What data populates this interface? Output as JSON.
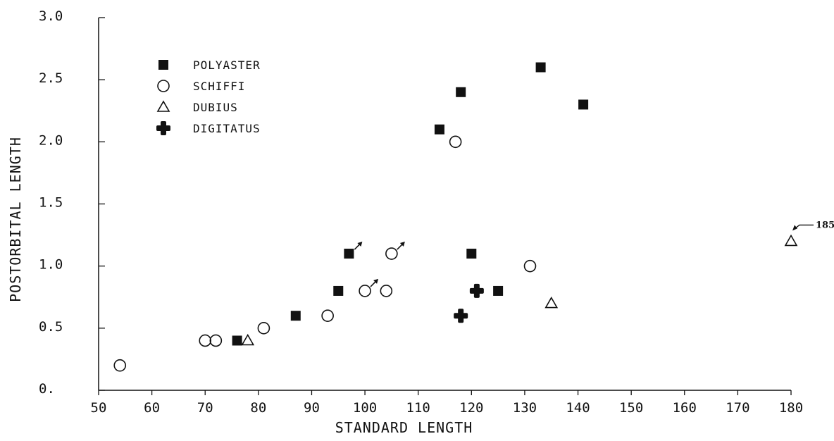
{
  "chart_data": {
    "type": "scatter",
    "title": "",
    "xlabel": "STANDARD LENGTH",
    "ylabel": "POSTORBITAL LENGTH",
    "xlim": [
      50,
      180
    ],
    "ylim": [
      0,
      3.0
    ],
    "xticks": [
      "50",
      "60",
      "70",
      "80",
      "90",
      "100",
      "110",
      "120",
      "130",
      "140",
      "150",
      "160",
      "170",
      "180"
    ],
    "xtick_values": [
      50,
      60,
      70,
      80,
      90,
      100,
      110,
      120,
      130,
      140,
      150,
      160,
      170,
      180
    ],
    "yticks": [
      "0.",
      "0.5",
      "1.0",
      "1.5",
      "2.0",
      "2.5",
      "3.0"
    ],
    "ytick_values": [
      0,
      0.5,
      1.0,
      1.5,
      2.0,
      2.5,
      3.0
    ],
    "grid": false,
    "legend_position": "top-left",
    "series": [
      {
        "name": "POLYASTER",
        "marker": "filled-square",
        "x": [
          76,
          87,
          95,
          97,
          114,
          118,
          120,
          125,
          133,
          141
        ],
        "y": [
          0.4,
          0.6,
          0.8,
          1.1,
          2.1,
          2.4,
          1.1,
          0.8,
          2.6,
          2.3
        ],
        "male": [
          false,
          false,
          false,
          true,
          false,
          false,
          false,
          false,
          false,
          false
        ]
      },
      {
        "name": "SCHIFFI",
        "marker": "open-circle",
        "x": [
          54,
          70,
          72,
          81,
          93,
          100,
          104,
          105,
          117,
          131
        ],
        "y": [
          0.2,
          0.4,
          0.4,
          0.5,
          0.6,
          0.8,
          0.8,
          1.1,
          2.0,
          1.0
        ],
        "male": [
          false,
          false,
          false,
          false,
          false,
          true,
          false,
          true,
          false,
          false
        ]
      },
      {
        "name": "DUBIUS",
        "marker": "open-triangle",
        "x": [
          78,
          135,
          180
        ],
        "y": [
          0.4,
          0.7,
          1.2
        ],
        "male": [
          false,
          false,
          false
        ]
      },
      {
        "name": "DIGITATUS",
        "marker": "filled-cross",
        "x": [
          118,
          121
        ],
        "y": [
          0.6,
          0.8
        ],
        "male": [
          false,
          false
        ]
      }
    ],
    "annotations": [
      {
        "text": "185",
        "series": "DUBIUS",
        "point_index": 2
      }
    ]
  }
}
